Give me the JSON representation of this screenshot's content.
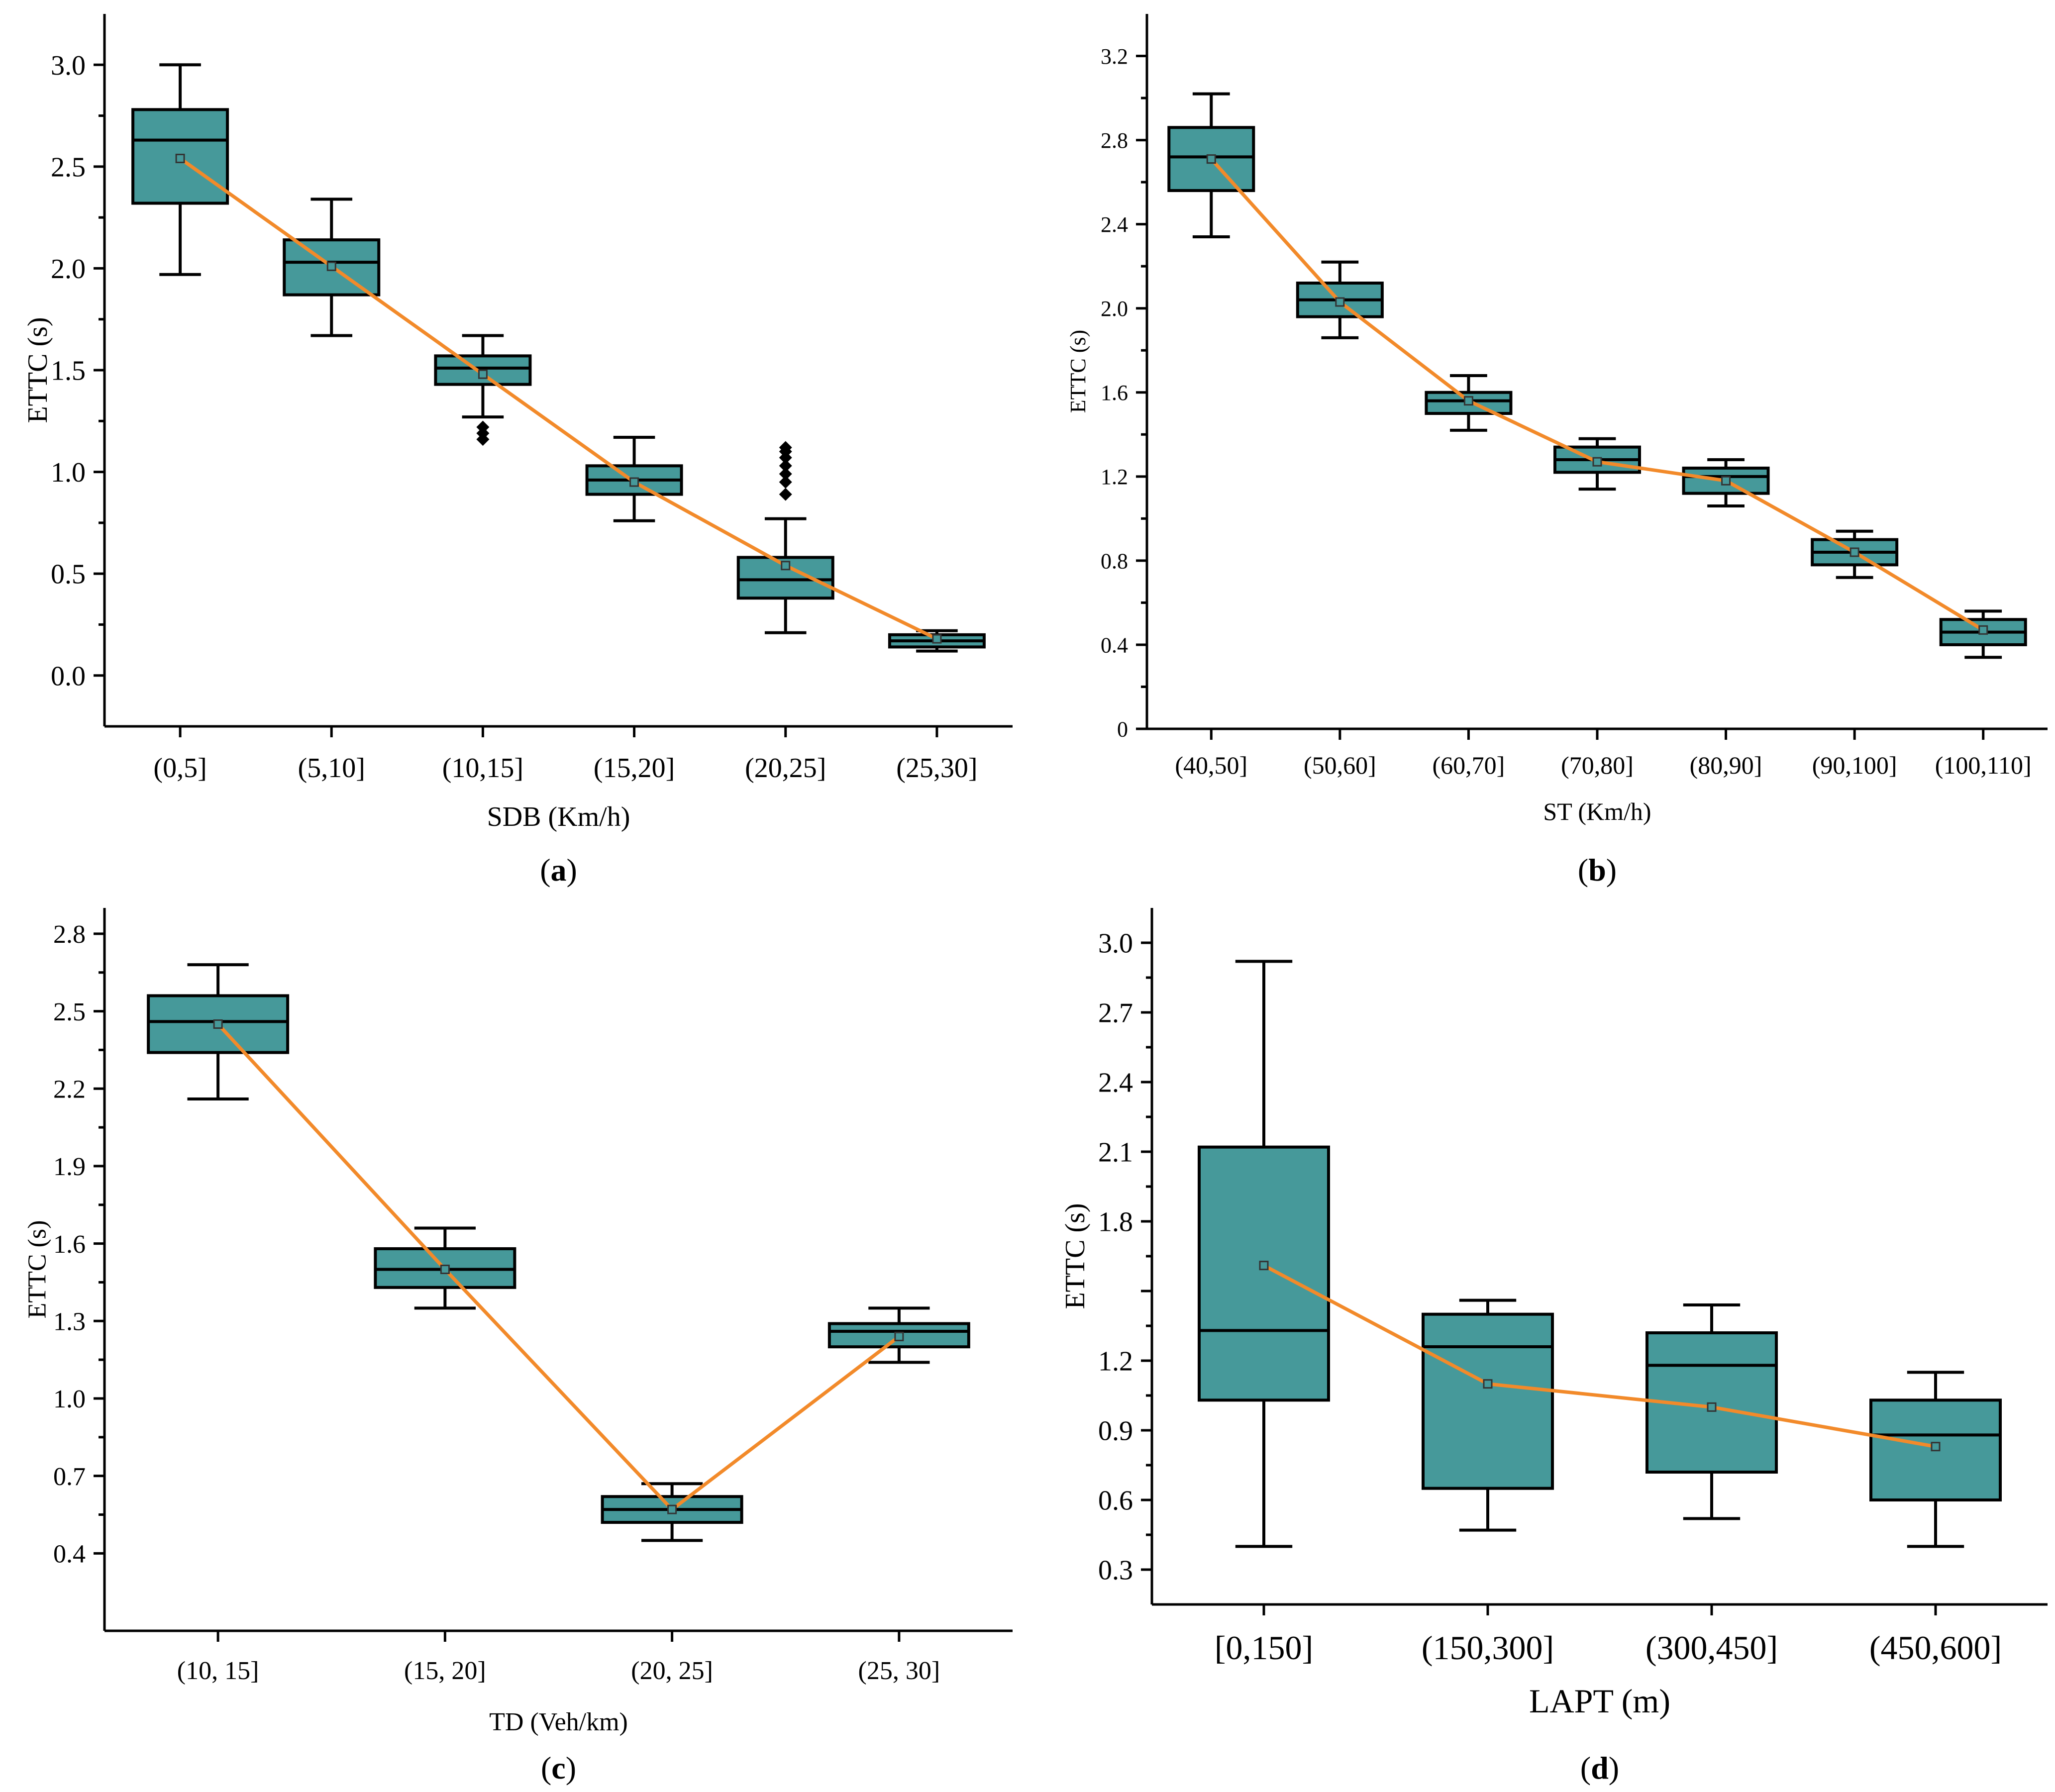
{
  "colors": {
    "box": "#46999a",
    "mean_line": "#f28a2a",
    "axis": "#000000"
  },
  "chart_data": [
    {
      "type": "box",
      "panel_label": "(a)",
      "xlabel": "SDB (Km/h)",
      "ylabel": "ETTC (s)",
      "ylim": [
        -0.25,
        3.25
      ],
      "yticks": [
        0.0,
        0.5,
        1.0,
        1.5,
        2.0,
        2.5,
        3.0
      ],
      "ytick_labels": [
        "0.0",
        "0.5",
        "1.0",
        "1.5",
        "2.0",
        "2.5",
        "3.0"
      ],
      "categories": [
        "(0,5]",
        "(5,10]",
        "(10,15]",
        "(15,20]",
        "(20,25]",
        "(25,30]"
      ],
      "boxes": [
        {
          "min": 1.97,
          "q1": 2.32,
          "median": 2.63,
          "q3": 2.78,
          "max": 3.0,
          "mean": 2.54,
          "outliers": []
        },
        {
          "min": 1.67,
          "q1": 1.87,
          "median": 2.03,
          "q3": 2.14,
          "max": 2.34,
          "mean": 2.01,
          "outliers": []
        },
        {
          "min": 1.27,
          "q1": 1.43,
          "median": 1.51,
          "q3": 1.57,
          "max": 1.67,
          "mean": 1.48,
          "outliers": [
            1.16,
            1.19,
            1.22
          ]
        },
        {
          "min": 0.76,
          "q1": 0.89,
          "median": 0.96,
          "q3": 1.03,
          "max": 1.17,
          "mean": 0.95,
          "outliers": []
        },
        {
          "min": 0.21,
          "q1": 0.38,
          "median": 0.47,
          "q3": 0.58,
          "max": 0.77,
          "mean": 0.54,
          "outliers": [
            0.89,
            0.95,
            0.99,
            1.03,
            1.07,
            1.1,
            1.12
          ]
        },
        {
          "min": 0.12,
          "q1": 0.14,
          "median": 0.17,
          "q3": 0.2,
          "max": 0.22,
          "mean": 0.18,
          "outliers": []
        }
      ]
    },
    {
      "type": "box",
      "panel_label": "(b)",
      "xlabel": "ST (Km/h)",
      "ylabel": "ETTC (s)",
      "ylim": [
        0,
        3.4
      ],
      "yticks": [
        0,
        0.4,
        0.8,
        1.2,
        1.6,
        2.0,
        2.4,
        2.8,
        3.2
      ],
      "ytick_labels": [
        "0",
        "0.4",
        "0.8",
        "1.2",
        "1.6",
        "2.0",
        "2.4",
        "2.8",
        "3.2"
      ],
      "categories": [
        "(40,50]",
        "(50,60]",
        "(60,70]",
        "(70,80]",
        "(80,90]",
        "(90,100]",
        "(100,110]"
      ],
      "boxes": [
        {
          "min": 2.34,
          "q1": 2.56,
          "median": 2.72,
          "q3": 2.86,
          "max": 3.02,
          "mean": 2.71,
          "outliers": []
        },
        {
          "min": 1.86,
          "q1": 1.96,
          "median": 2.04,
          "q3": 2.12,
          "max": 2.22,
          "mean": 2.03,
          "outliers": []
        },
        {
          "min": 1.42,
          "q1": 1.5,
          "median": 1.56,
          "q3": 1.6,
          "max": 1.68,
          "mean": 1.56,
          "outliers": []
        },
        {
          "min": 1.14,
          "q1": 1.22,
          "median": 1.28,
          "q3": 1.34,
          "max": 1.38,
          "mean": 1.27,
          "outliers": []
        },
        {
          "min": 1.06,
          "q1": 1.12,
          "median": 1.2,
          "q3": 1.24,
          "max": 1.28,
          "mean": 1.18,
          "outliers": []
        },
        {
          "min": 0.72,
          "q1": 0.78,
          "median": 0.84,
          "q3": 0.9,
          "max": 0.94,
          "mean": 0.84,
          "outliers": []
        },
        {
          "min": 0.34,
          "q1": 0.4,
          "median": 0.46,
          "q3": 0.52,
          "max": 0.56,
          "mean": 0.47,
          "outliers": []
        }
      ]
    },
    {
      "type": "box",
      "panel_label": "(c)",
      "xlabel": "TD (Veh/km)",
      "ylabel": "ETTC (s)",
      "ylim": [
        0.1,
        2.9
      ],
      "yticks": [
        0.4,
        0.7,
        1.0,
        1.3,
        1.6,
        1.9,
        2.2,
        2.5,
        2.8
      ],
      "ytick_labels": [
        "0.4",
        "0.7",
        "1.0",
        "1.3",
        "1.6",
        "1.9",
        "2.2",
        "2.5",
        "2.8"
      ],
      "categories": [
        "(10, 15]",
        "(15, 20]",
        "(20, 25]",
        "(25, 30]"
      ],
      "boxes": [
        {
          "min": 2.16,
          "q1": 2.34,
          "median": 2.46,
          "q3": 2.56,
          "max": 2.68,
          "mean": 2.45,
          "outliers": []
        },
        {
          "min": 1.35,
          "q1": 1.43,
          "median": 1.5,
          "q3": 1.58,
          "max": 1.66,
          "mean": 1.5,
          "outliers": []
        },
        {
          "min": 0.45,
          "q1": 0.52,
          "median": 0.57,
          "q3": 0.62,
          "max": 0.67,
          "mean": 0.57,
          "outliers": []
        },
        {
          "min": 1.14,
          "q1": 1.2,
          "median": 1.26,
          "q3": 1.29,
          "max": 1.35,
          "mean": 1.24,
          "outliers": []
        }
      ]
    },
    {
      "type": "box",
      "panel_label": "(d)",
      "xlabel": "LAPT (m)",
      "ylabel": "ETTC (s)",
      "ylim": [
        0.15,
        3.15
      ],
      "yticks": [
        0.3,
        0.6,
        0.9,
        1.2,
        1.8,
        2.1,
        2.4,
        2.7,
        3.0
      ],
      "ytick_positions": [
        0.3,
        0.6,
        0.9,
        1.2,
        1.5,
        1.8,
        2.1,
        2.4,
        2.7,
        3.0
      ],
      "ytick_labels": [
        "0.3",
        "0.6",
        "0.9",
        "1.2",
        "1.8",
        "2.1",
        "2.4",
        "2.7",
        "3.0"
      ],
      "categories": [
        "[0,150]",
        "(150,300]",
        "(300,450]",
        "(450,600]"
      ],
      "boxes": [
        {
          "min": 0.4,
          "q1": 1.03,
          "median": 1.33,
          "q3": 2.12,
          "max": 2.92,
          "mean": 1.61,
          "outliers": []
        },
        {
          "min": 0.47,
          "q1": 0.65,
          "median": 1.26,
          "q3": 1.4,
          "max": 1.46,
          "mean": 1.1,
          "outliers": []
        },
        {
          "min": 0.52,
          "q1": 0.72,
          "median": 1.18,
          "q3": 1.32,
          "max": 1.44,
          "mean": 1.0,
          "outliers": []
        },
        {
          "min": 0.4,
          "q1": 0.6,
          "median": 0.88,
          "q3": 1.03,
          "max": 1.15,
          "mean": 0.83,
          "outliers": []
        }
      ]
    }
  ]
}
